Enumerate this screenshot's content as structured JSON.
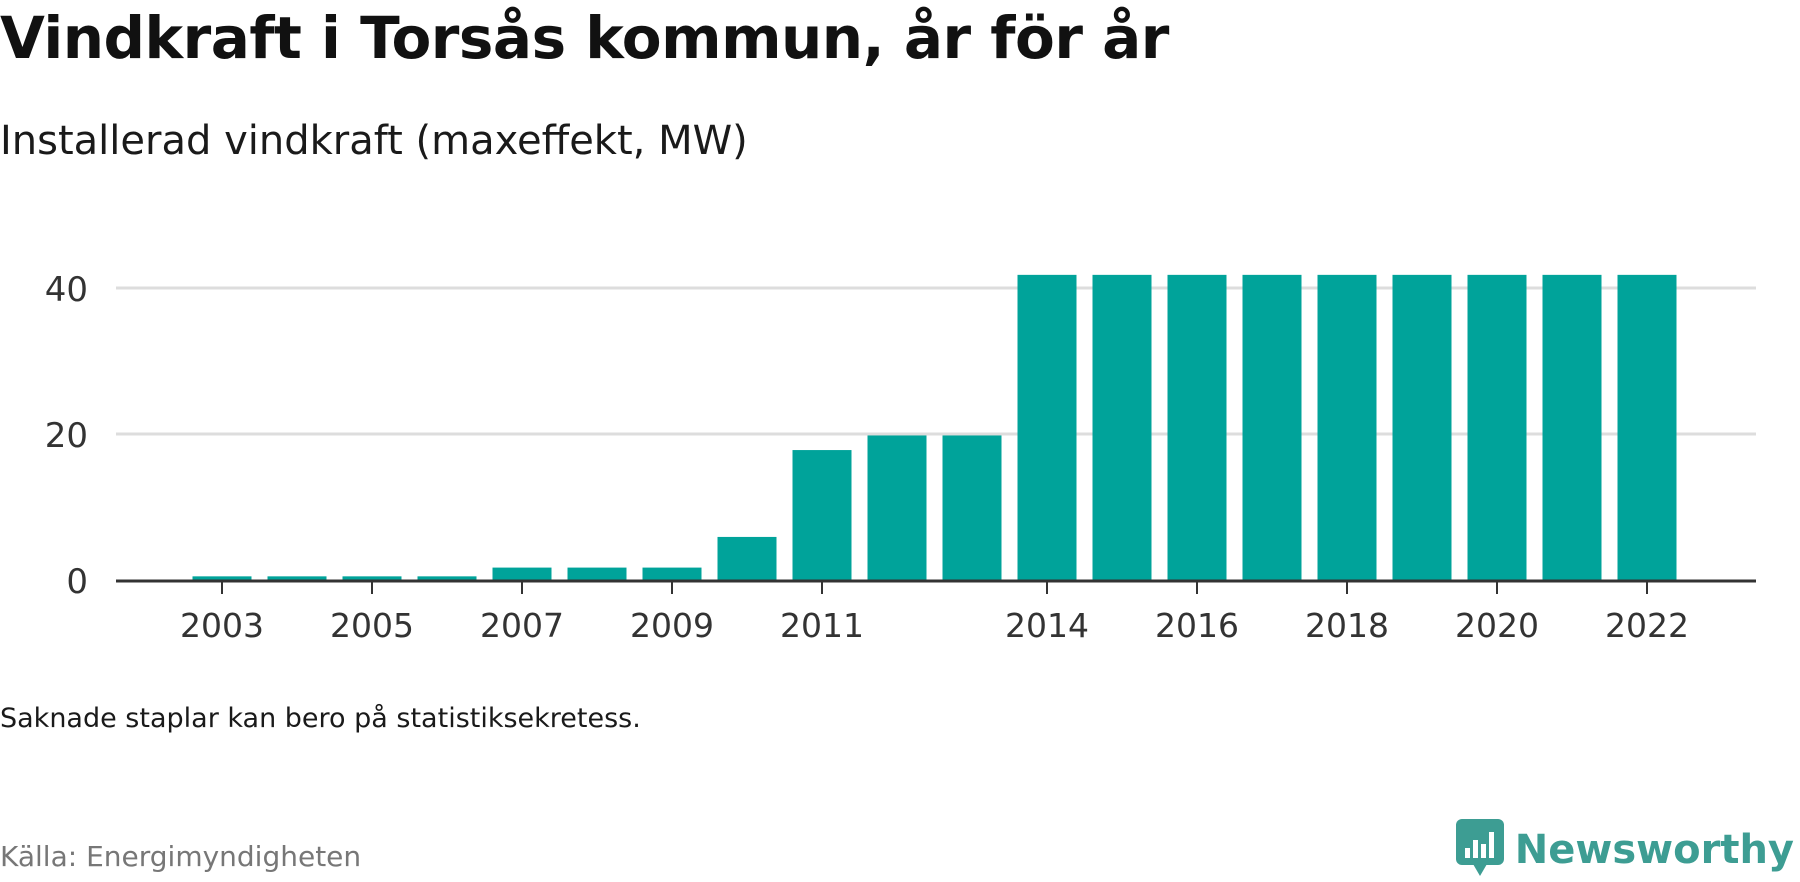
{
  "header": {
    "title": "Vindkraft i Torsås kommun, år för år",
    "subtitle": "Installerad vindkraft (maxeffekt, MW)"
  },
  "footer": {
    "note": "Saknade staplar kan bero på statistiksekretess.",
    "source": "Källa: Energimyndigheten",
    "brand": "Newsworthy",
    "brand_icon": "newsworthy-logo-icon"
  },
  "colors": {
    "bar": "#00a39a",
    "grid": "#dddddd",
    "axis": "#333333",
    "brand": "#3d9d93"
  },
  "chart_data": {
    "type": "bar",
    "categories": [
      "2003",
      "2004",
      "2005",
      "2006",
      "2007",
      "2008",
      "2009",
      "2010",
      "2011",
      "2012",
      "2013",
      "2014",
      "2015",
      "2016",
      "2017",
      "2018",
      "2019",
      "2020",
      "2021",
      "2022"
    ],
    "values": [
      0.5,
      0.5,
      0.5,
      0.5,
      1.7,
      1.7,
      1.7,
      5.9,
      17.8,
      19.8,
      19.8,
      41.8,
      41.8,
      41.8,
      41.8,
      41.8,
      41.8,
      41.8,
      41.8,
      41.8
    ],
    "x_tick_labels": [
      "2003",
      "2005",
      "2007",
      "2009",
      "2011",
      "2014",
      "2016",
      "2018",
      "2020",
      "2022"
    ],
    "y_ticks": [
      0,
      20,
      40
    ],
    "ylim": [
      0,
      44
    ],
    "grid": true,
    "title": "Vindkraft i Torsås kommun, år för år",
    "subtitle": "Installerad vindkraft (maxeffekt, MW)",
    "xlabel": "",
    "ylabel": ""
  }
}
